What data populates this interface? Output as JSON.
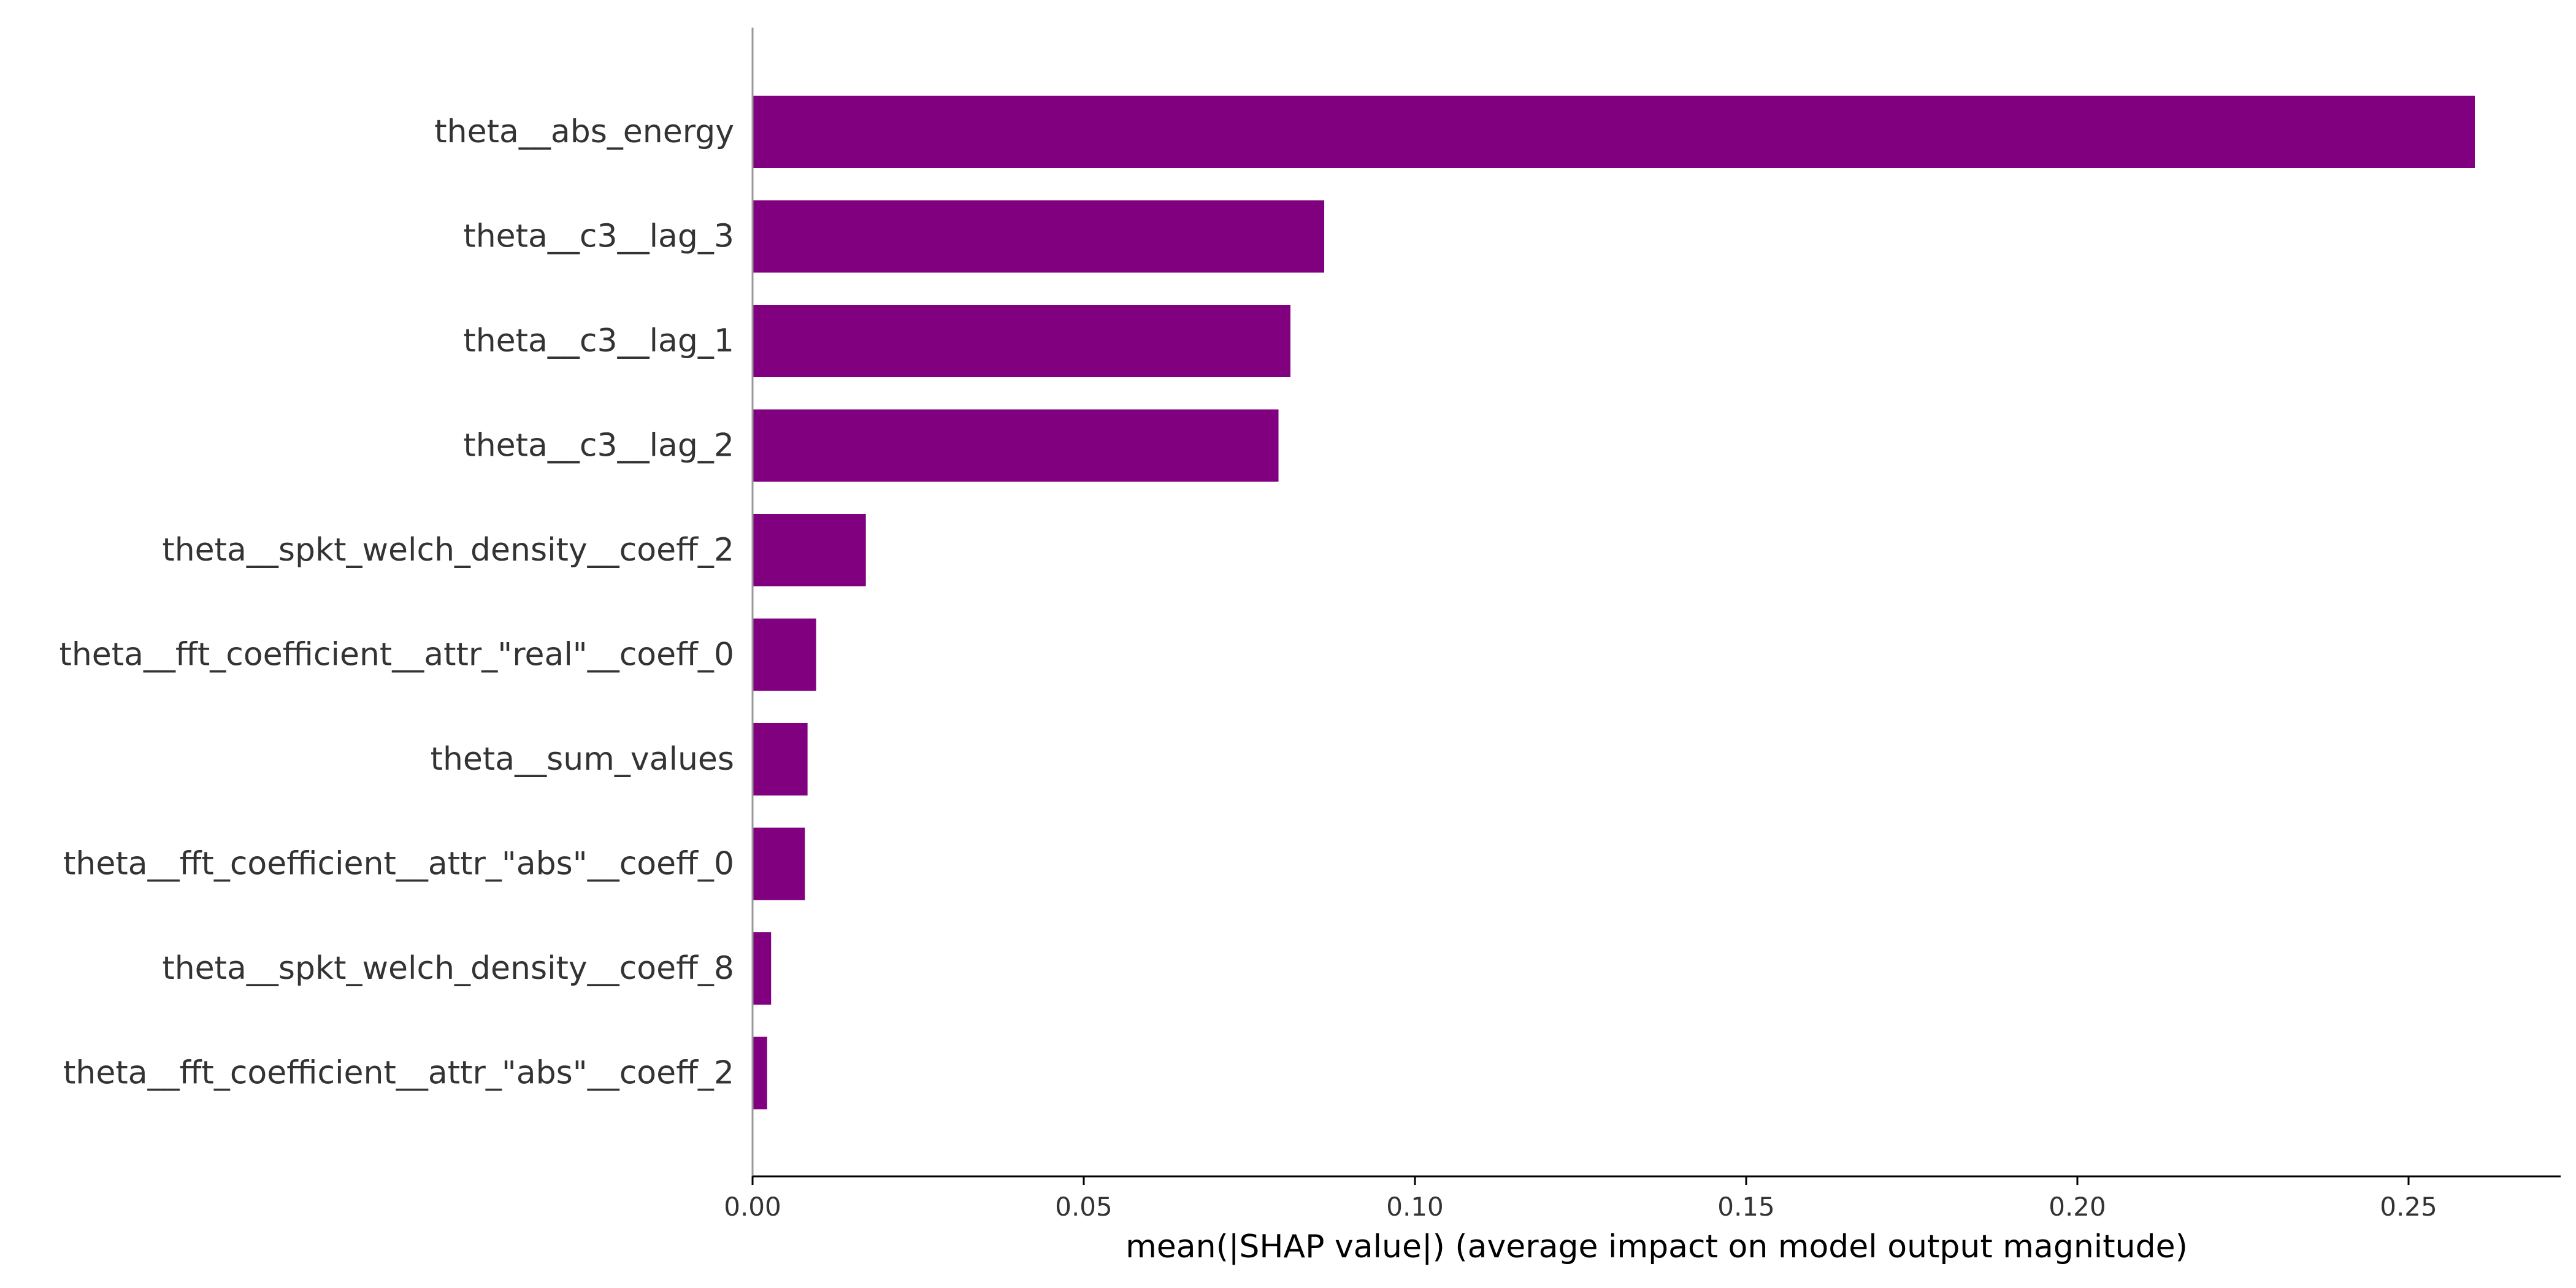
{
  "chart_data": {
    "type": "bar",
    "orientation": "horizontal",
    "categories": [
      "theta__abs_energy",
      "theta__c3__lag_3",
      "theta__c3__lag_1",
      "theta__c3__lag_2",
      "theta__spkt_welch_density__coeff_2",
      "theta__fft_coefficient__attr_\"real\"__coeff_0",
      "theta__sum_values",
      "theta__fft_coefficient__attr_\"abs\"__coeff_0",
      "theta__spkt_welch_density__coeff_8",
      "theta__fft_coefficient__attr_\"abs\"__coeff_2"
    ],
    "values": [
      0.26,
      0.0863,
      0.0812,
      0.0794,
      0.0171,
      0.0096,
      0.0083,
      0.0079,
      0.0028,
      0.0022
    ],
    "title": "",
    "xlabel": "mean(|SHAP value|) (average impact on model output magnitude)",
    "ylabel": "",
    "xlim": [
      0,
      0.273
    ],
    "xticks": [
      "0.00",
      "0.05",
      "0.10",
      "0.15",
      "0.20",
      "0.25"
    ],
    "bar_color": "#800080",
    "grid": false,
    "legend": "none"
  }
}
